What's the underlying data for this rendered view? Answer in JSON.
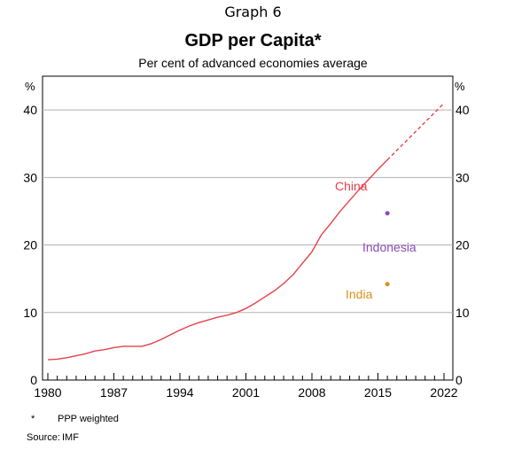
{
  "header": {
    "graph_label": "Graph 6",
    "title": "GDP per Capita*",
    "subtitle": "Per cent of advanced economies average"
  },
  "chart_data": {
    "type": "line",
    "title": "GDP per Capita*",
    "subtitle": "Per cent of advanced economies average",
    "unit_label_left": "%",
    "unit_label_right": "%",
    "xlim": [
      1980,
      2023
    ],
    "ylim": [
      0,
      45
    ],
    "x_ticks": [
      1980,
      1987,
      1994,
      2001,
      2008,
      2015,
      2022
    ],
    "y_ticks": [
      0,
      10,
      20,
      30,
      40
    ],
    "grid": true,
    "series": [
      {
        "name": "China",
        "color": "#e8404c",
        "style": "solid",
        "x": [
          1980,
          1981,
          1982,
          1983,
          1984,
          1985,
          1986,
          1987,
          1988,
          1989,
          1990,
          1991,
          1992,
          1993,
          1994,
          1995,
          1996,
          1997,
          1998,
          1999,
          2000,
          2001,
          2002,
          2003,
          2004,
          2005,
          2006,
          2007,
          2008,
          2009,
          2010,
          2011,
          2012,
          2013,
          2014,
          2015,
          2016
        ],
        "values": [
          3.0,
          3.1,
          3.3,
          3.6,
          3.9,
          4.3,
          4.5,
          4.8,
          5.0,
          5.0,
          5.0,
          5.4,
          6.0,
          6.7,
          7.4,
          8.0,
          8.5,
          8.9,
          9.3,
          9.6,
          10.0,
          10.6,
          11.4,
          12.3,
          13.2,
          14.3,
          15.6,
          17.3,
          19.0,
          21.5,
          23.2,
          25.0,
          26.6,
          28.2,
          29.7,
          31.2,
          32.6
        ]
      },
      {
        "name": "China (forecast)",
        "color": "#e8404c",
        "style": "dashed",
        "x": [
          2016,
          2017,
          2018,
          2019,
          2020,
          2021,
          2022
        ],
        "values": [
          32.6,
          34.0,
          35.4,
          36.8,
          38.2,
          39.6,
          41.0
        ]
      },
      {
        "name": "Indonesia",
        "color": "#8a4cb8",
        "style": "point",
        "x": [
          2016
        ],
        "values": [
          24.7
        ]
      },
      {
        "name": "India",
        "color": "#d9901c",
        "style": "point",
        "x": [
          2016
        ],
        "values": [
          14.2
        ]
      }
    ],
    "annotations": [
      {
        "text": "China",
        "color": "#e8404c"
      },
      {
        "text": "Indonesia",
        "color": "#8a4cb8"
      },
      {
        "text": "India",
        "color": "#d9901c"
      }
    ],
    "footnotes": [
      {
        "marker": "*",
        "text": "PPP weighted"
      },
      {
        "marker": "Source:",
        "text": "IMF"
      }
    ]
  }
}
